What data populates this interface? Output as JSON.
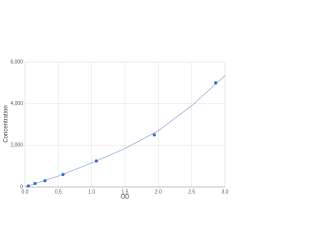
{
  "chart_data": {
    "type": "scatter",
    "x_label": "OD",
    "y_label": "Concentration",
    "x": [
      0.05,
      0.15,
      0.3,
      0.57,
      1.07,
      1.94,
      2.86
    ],
    "values": [
      50,
      170,
      300,
      600,
      1250,
      2500,
      5000
    ],
    "color": "#3a6ec8",
    "fit": {
      "type": "line",
      "x": [
        0,
        0.5,
        1,
        1.5,
        2,
        2.5,
        3
      ],
      "values": [
        0,
        530,
        1150,
        1850,
        2700,
        3900,
        5350
      ],
      "color": "#9ab0e6"
    },
    "xlim": [
      0,
      3
    ],
    "ylim": [
      0,
      6000
    ],
    "xticks": [
      {
        "value": 0,
        "label": "0.0"
      },
      0.5,
      {
        "value": 1,
        "label": "1.0"
      },
      1.5,
      {
        "value": 2,
        "label": "2.0"
      },
      2.5,
      {
        "value": 3,
        "label": "3.0"
      }
    ],
    "yticks": [
      0,
      {
        "value": 2000,
        "label": "2,000"
      },
      {
        "value": 4000,
        "label": "4,000"
      },
      {
        "value": 6000,
        "label": "6,000"
      }
    ],
    "grid": true
  }
}
